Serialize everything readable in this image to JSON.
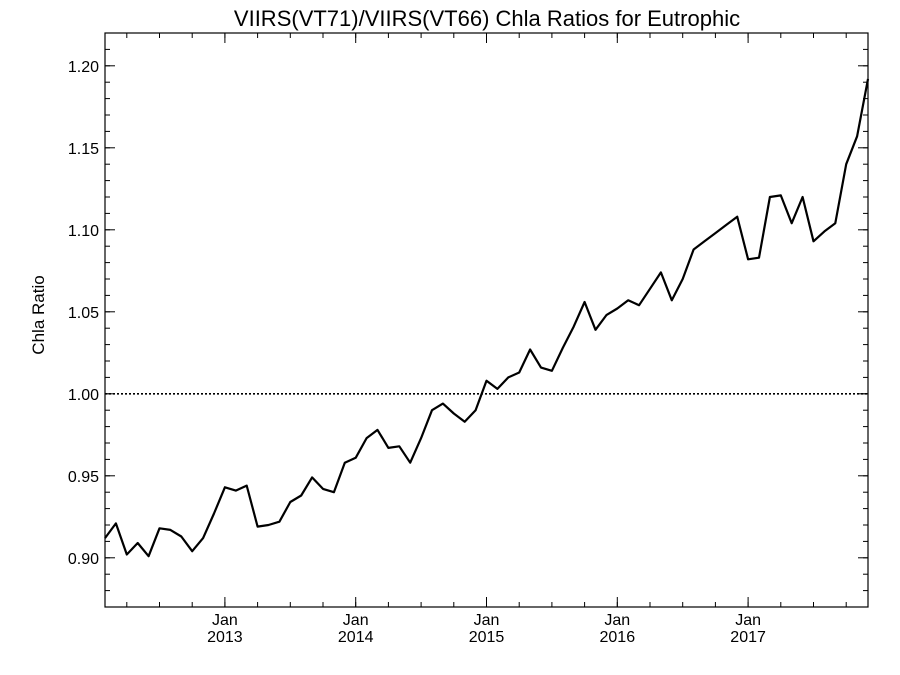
{
  "chart_data": {
    "type": "line",
    "title": "VIIRS(VT71)/VIIRS(VT66)  Chla Ratios for Eutrophic",
    "ylabel": "Chla Ratio",
    "xlabel": "",
    "ylim": [
      0.87,
      1.22
    ],
    "y_ticks": [
      "0.90",
      "0.95",
      "1.00",
      "1.05",
      "1.10",
      "1.15",
      "1.20"
    ],
    "x_range_months": [
      "2012-02",
      "2017-12"
    ],
    "x_ticks": [
      {
        "month": "Jan",
        "year": "2013",
        "date": "2013-01"
      },
      {
        "month": "Jan",
        "year": "2014",
        "date": "2014-01"
      },
      {
        "month": "Jan",
        "year": "2015",
        "date": "2015-01"
      },
      {
        "month": "Jan",
        "year": "2016",
        "date": "2016-01"
      },
      {
        "month": "Jan",
        "year": "2017",
        "date": "2017-01"
      }
    ],
    "reference_line": {
      "y": 1.0,
      "style": "dotted"
    },
    "grid": false,
    "series": [
      {
        "x": [
          "2012-02",
          "2012-03",
          "2012-04",
          "2012-05",
          "2012-06",
          "2012-07",
          "2012-08",
          "2012-09",
          "2012-10",
          "2012-11",
          "2012-12",
          "2013-01",
          "2013-02",
          "2013-03",
          "2013-04",
          "2013-05",
          "2013-06",
          "2013-07",
          "2013-08",
          "2013-09",
          "2013-10",
          "2013-11",
          "2013-12",
          "2014-01",
          "2014-02",
          "2014-03",
          "2014-04",
          "2014-05",
          "2014-06",
          "2014-07",
          "2014-08",
          "2014-09",
          "2014-10",
          "2014-11",
          "2014-12",
          "2015-01",
          "2015-02",
          "2015-03",
          "2015-04",
          "2015-05",
          "2015-06",
          "2015-07",
          "2015-08",
          "2015-09",
          "2015-10",
          "2015-11",
          "2015-12",
          "2016-01",
          "2016-02",
          "2016-03",
          "2016-04",
          "2016-05",
          "2016-06",
          "2016-07",
          "2016-08",
          "2016-09",
          "2016-10",
          "2016-11",
          "2016-12",
          "2017-01",
          "2017-02",
          "2017-03",
          "2017-04",
          "2017-05",
          "2017-06",
          "2017-07",
          "2017-08",
          "2017-09",
          "2017-10",
          "2017-11",
          "2017-12"
        ],
        "y": [
          0.912,
          0.921,
          0.902,
          0.909,
          0.901,
          0.918,
          0.917,
          0.913,
          0.904,
          0.912,
          0.927,
          0.943,
          0.941,
          0.944,
          0.919,
          0.92,
          0.922,
          0.934,
          0.938,
          0.949,
          0.942,
          0.94,
          0.958,
          0.961,
          0.973,
          0.978,
          0.967,
          0.968,
          0.958,
          0.973,
          0.99,
          0.994,
          0.988,
          0.983,
          0.99,
          1.008,
          1.003,
          1.01,
          1.013,
          1.027,
          1.016,
          1.014,
          1.028,
          1.041,
          1.056,
          1.039,
          1.048,
          1.052,
          1.057,
          1.054,
          1.064,
          1.074,
          1.057,
          1.07,
          1.088,
          1.093,
          1.098,
          1.103,
          1.108,
          1.082,
          1.083,
          1.12,
          1.121,
          1.104,
          1.12,
          1.093,
          1.099,
          1.104,
          1.14,
          1.157,
          1.192
        ]
      }
    ]
  }
}
